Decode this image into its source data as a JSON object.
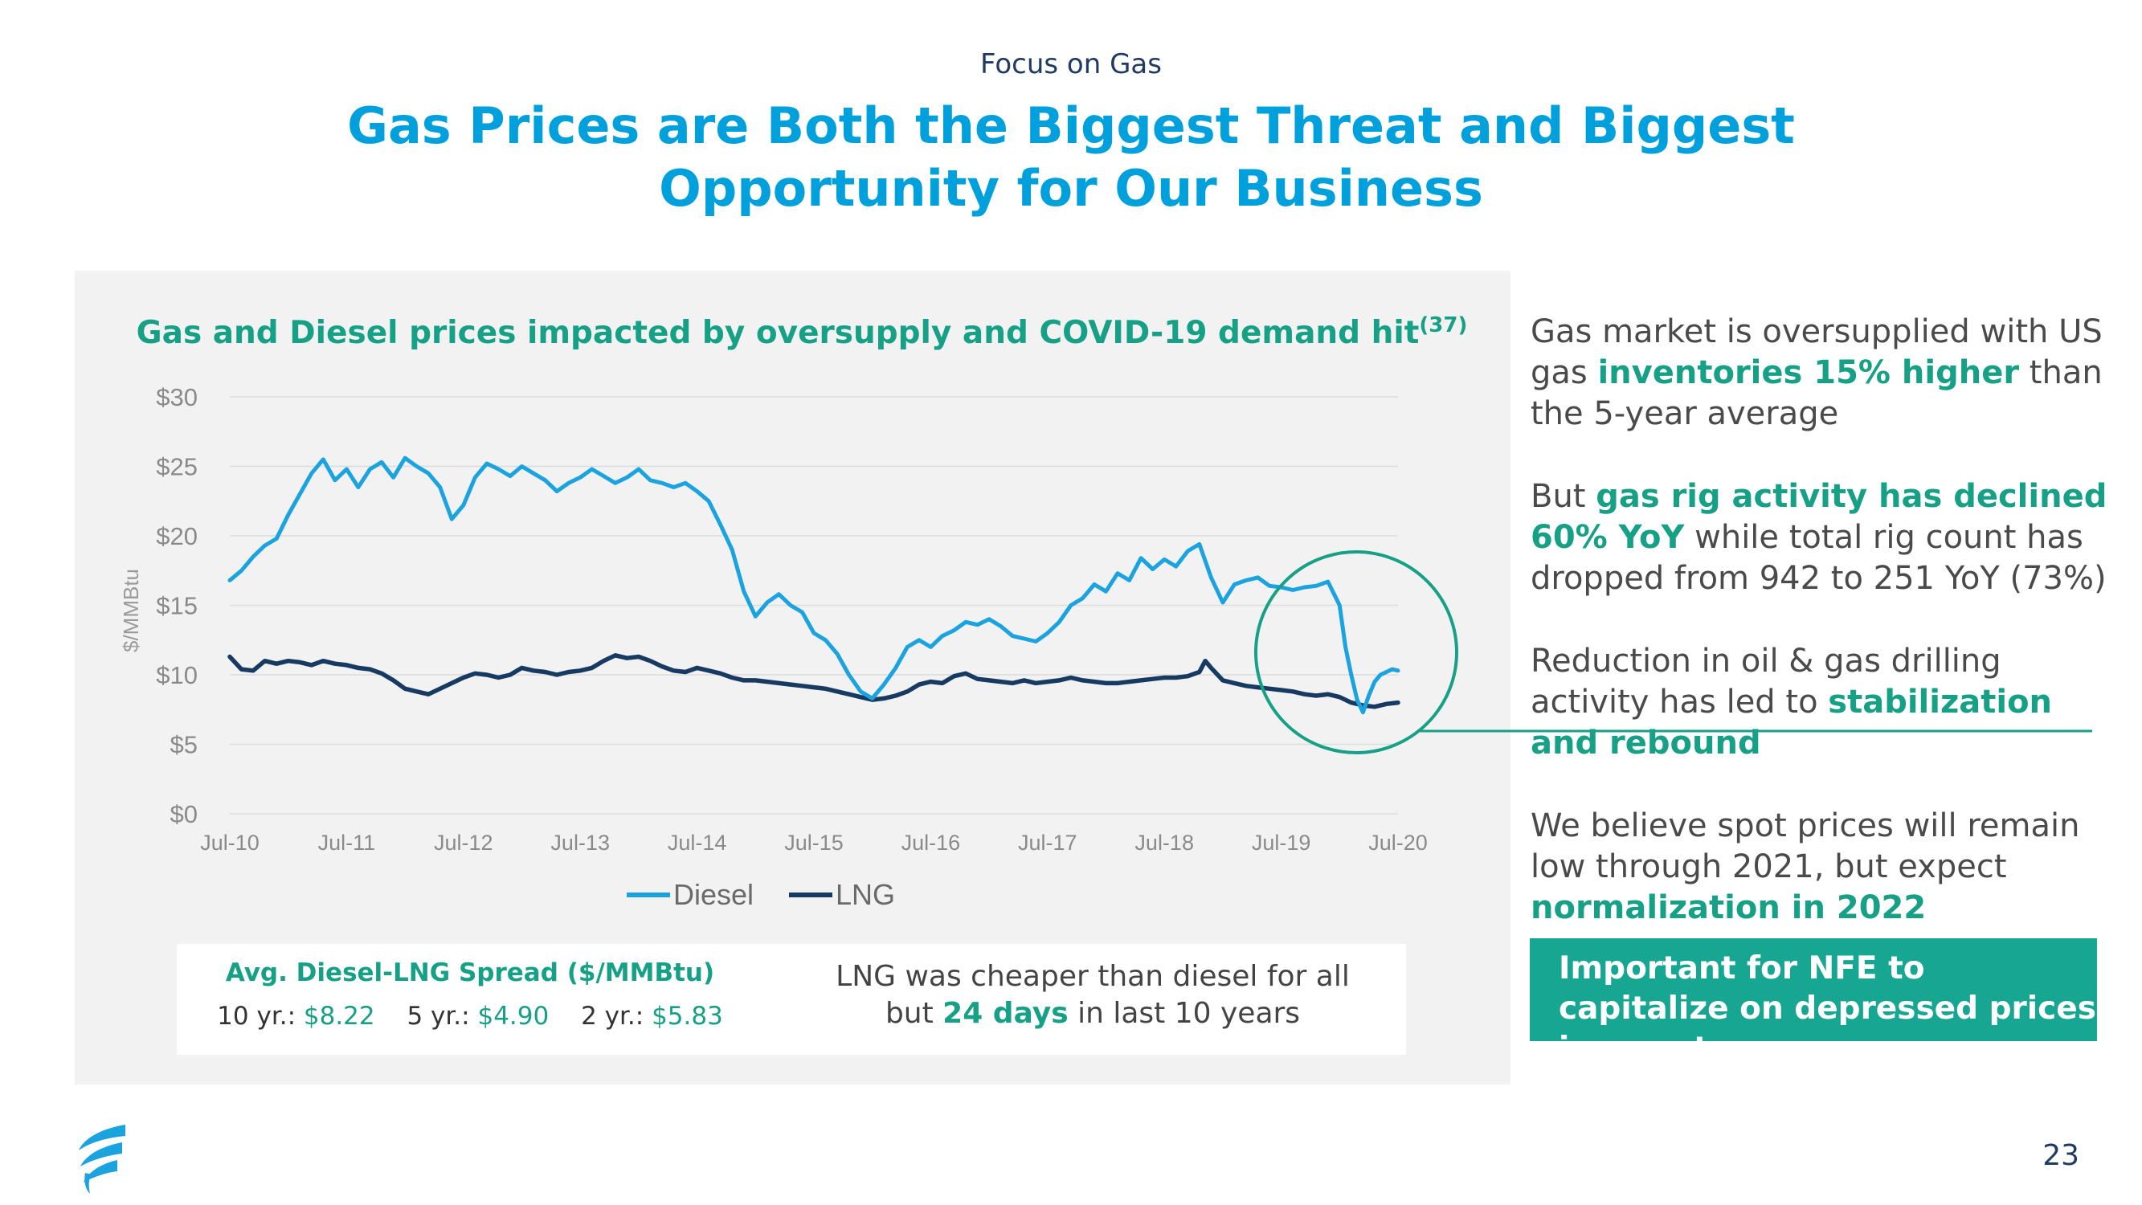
{
  "header": {
    "kicker": "Focus on Gas",
    "title": "Gas Prices are Both the Biggest Threat and Biggest Opportunity for Our Business"
  },
  "chart_data": {
    "type": "line",
    "title": "Gas and Diesel prices impacted by oversupply and COVID-19 demand hit",
    "title_superscript": "(37)",
    "ylabel": "$/MMBtu",
    "xlabel": "",
    "ylim": [
      0,
      30
    ],
    "yticks": [
      "$0",
      "$5",
      "$10",
      "$15",
      "$20",
      "$25",
      "$30"
    ],
    "xticks": [
      "Jul-10",
      "Jul-11",
      "Jul-12",
      "Jul-13",
      "Jul-14",
      "Jul-15",
      "Jul-16",
      "Jul-17",
      "Jul-18",
      "Jul-19",
      "Jul-20"
    ],
    "x_range": [
      2010.5,
      2020.5
    ],
    "grid": true,
    "legend": "bottom-center",
    "series": [
      {
        "name": "Diesel",
        "color": "#1aa3de",
        "points": [
          [
            2010.5,
            16.8
          ],
          [
            2010.6,
            17.5
          ],
          [
            2010.7,
            18.5
          ],
          [
            2010.8,
            19.3
          ],
          [
            2010.9,
            19.8
          ],
          [
            2011.0,
            21.5
          ],
          [
            2011.1,
            23.0
          ],
          [
            2011.2,
            24.5
          ],
          [
            2011.3,
            25.5
          ],
          [
            2011.4,
            24.0
          ],
          [
            2011.5,
            24.8
          ],
          [
            2011.6,
            23.5
          ],
          [
            2011.7,
            24.8
          ],
          [
            2011.8,
            25.3
          ],
          [
            2011.9,
            24.2
          ],
          [
            2012.0,
            25.6
          ],
          [
            2012.1,
            25.0
          ],
          [
            2012.2,
            24.5
          ],
          [
            2012.3,
            23.5
          ],
          [
            2012.4,
            21.2
          ],
          [
            2012.5,
            22.2
          ],
          [
            2012.6,
            24.2
          ],
          [
            2012.7,
            25.2
          ],
          [
            2012.8,
            24.8
          ],
          [
            2012.9,
            24.3
          ],
          [
            2013.0,
            25.0
          ],
          [
            2013.1,
            24.5
          ],
          [
            2013.2,
            24.0
          ],
          [
            2013.3,
            23.2
          ],
          [
            2013.4,
            23.8
          ],
          [
            2013.5,
            24.2
          ],
          [
            2013.6,
            24.8
          ],
          [
            2013.7,
            24.3
          ],
          [
            2013.8,
            23.8
          ],
          [
            2013.9,
            24.2
          ],
          [
            2014.0,
            24.8
          ],
          [
            2014.1,
            24.0
          ],
          [
            2014.2,
            23.8
          ],
          [
            2014.3,
            23.5
          ],
          [
            2014.4,
            23.8
          ],
          [
            2014.5,
            23.2
          ],
          [
            2014.6,
            22.5
          ],
          [
            2014.7,
            20.8
          ],
          [
            2014.8,
            19.0
          ],
          [
            2014.9,
            16.0
          ],
          [
            2015.0,
            14.2
          ],
          [
            2015.1,
            15.2
          ],
          [
            2015.2,
            15.8
          ],
          [
            2015.3,
            15.0
          ],
          [
            2015.4,
            14.5
          ],
          [
            2015.5,
            13.0
          ],
          [
            2015.6,
            12.5
          ],
          [
            2015.7,
            11.5
          ],
          [
            2015.8,
            10.0
          ],
          [
            2015.9,
            8.8
          ],
          [
            2016.0,
            8.3
          ],
          [
            2016.1,
            9.3
          ],
          [
            2016.2,
            10.5
          ],
          [
            2016.3,
            12.0
          ],
          [
            2016.4,
            12.5
          ],
          [
            2016.5,
            12.0
          ],
          [
            2016.6,
            12.8
          ],
          [
            2016.7,
            13.2
          ],
          [
            2016.8,
            13.8
          ],
          [
            2016.9,
            13.6
          ],
          [
            2017.0,
            14.0
          ],
          [
            2017.1,
            13.5
          ],
          [
            2017.2,
            12.8
          ],
          [
            2017.3,
            12.6
          ],
          [
            2017.4,
            12.4
          ],
          [
            2017.5,
            13.0
          ],
          [
            2017.6,
            13.8
          ],
          [
            2017.7,
            15.0
          ],
          [
            2017.8,
            15.5
          ],
          [
            2017.9,
            16.5
          ],
          [
            2018.0,
            16.0
          ],
          [
            2018.1,
            17.3
          ],
          [
            2018.2,
            16.8
          ],
          [
            2018.3,
            18.4
          ],
          [
            2018.4,
            17.6
          ],
          [
            2018.5,
            18.3
          ],
          [
            2018.6,
            17.8
          ],
          [
            2018.7,
            18.9
          ],
          [
            2018.8,
            19.4
          ],
          [
            2018.9,
            17.0
          ],
          [
            2019.0,
            15.2
          ],
          [
            2019.1,
            16.5
          ],
          [
            2019.2,
            16.8
          ],
          [
            2019.3,
            17.0
          ],
          [
            2019.4,
            16.4
          ],
          [
            2019.5,
            16.3
          ],
          [
            2019.6,
            16.1
          ],
          [
            2019.7,
            16.3
          ],
          [
            2019.8,
            16.4
          ],
          [
            2019.9,
            16.7
          ],
          [
            2020.0,
            15.0
          ],
          [
            2020.05,
            12.0
          ],
          [
            2020.1,
            10.0
          ],
          [
            2020.15,
            8.2
          ],
          [
            2020.2,
            7.3
          ],
          [
            2020.25,
            8.5
          ],
          [
            2020.3,
            9.5
          ],
          [
            2020.35,
            10.0
          ],
          [
            2020.4,
            10.2
          ],
          [
            2020.45,
            10.4
          ],
          [
            2020.5,
            10.3
          ]
        ]
      },
      {
        "name": "LNG",
        "color": "#173a63",
        "points": [
          [
            2010.5,
            11.3
          ],
          [
            2010.6,
            10.4
          ],
          [
            2010.7,
            10.3
          ],
          [
            2010.8,
            11.0
          ],
          [
            2010.9,
            10.8
          ],
          [
            2011.0,
            11.0
          ],
          [
            2011.1,
            10.9
          ],
          [
            2011.2,
            10.7
          ],
          [
            2011.3,
            11.0
          ],
          [
            2011.4,
            10.8
          ],
          [
            2011.5,
            10.7
          ],
          [
            2011.6,
            10.5
          ],
          [
            2011.7,
            10.4
          ],
          [
            2011.8,
            10.1
          ],
          [
            2011.9,
            9.6
          ],
          [
            2012.0,
            9.0
          ],
          [
            2012.1,
            8.8
          ],
          [
            2012.2,
            8.6
          ],
          [
            2012.3,
            9.0
          ],
          [
            2012.4,
            9.4
          ],
          [
            2012.5,
            9.8
          ],
          [
            2012.6,
            10.1
          ],
          [
            2012.7,
            10.0
          ],
          [
            2012.8,
            9.8
          ],
          [
            2012.9,
            10.0
          ],
          [
            2013.0,
            10.5
          ],
          [
            2013.1,
            10.3
          ],
          [
            2013.2,
            10.2
          ],
          [
            2013.3,
            10.0
          ],
          [
            2013.4,
            10.2
          ],
          [
            2013.5,
            10.3
          ],
          [
            2013.6,
            10.5
          ],
          [
            2013.7,
            11.0
          ],
          [
            2013.8,
            11.4
          ],
          [
            2013.9,
            11.2
          ],
          [
            2014.0,
            11.3
          ],
          [
            2014.1,
            11.0
          ],
          [
            2014.2,
            10.6
          ],
          [
            2014.3,
            10.3
          ],
          [
            2014.4,
            10.2
          ],
          [
            2014.5,
            10.5
          ],
          [
            2014.6,
            10.3
          ],
          [
            2014.7,
            10.1
          ],
          [
            2014.8,
            9.8
          ],
          [
            2014.9,
            9.6
          ],
          [
            2015.0,
            9.6
          ],
          [
            2015.1,
            9.5
          ],
          [
            2015.2,
            9.4
          ],
          [
            2015.3,
            9.3
          ],
          [
            2015.4,
            9.2
          ],
          [
            2015.5,
            9.1
          ],
          [
            2015.6,
            9.0
          ],
          [
            2015.7,
            8.8
          ],
          [
            2015.8,
            8.6
          ],
          [
            2015.9,
            8.4
          ],
          [
            2016.0,
            8.2
          ],
          [
            2016.1,
            8.3
          ],
          [
            2016.2,
            8.5
          ],
          [
            2016.3,
            8.8
          ],
          [
            2016.4,
            9.3
          ],
          [
            2016.5,
            9.5
          ],
          [
            2016.6,
            9.4
          ],
          [
            2016.7,
            9.9
          ],
          [
            2016.8,
            10.1
          ],
          [
            2016.9,
            9.7
          ],
          [
            2017.0,
            9.6
          ],
          [
            2017.1,
            9.5
          ],
          [
            2017.2,
            9.4
          ],
          [
            2017.3,
            9.6
          ],
          [
            2017.4,
            9.4
          ],
          [
            2017.5,
            9.5
          ],
          [
            2017.6,
            9.6
          ],
          [
            2017.7,
            9.8
          ],
          [
            2017.8,
            9.6
          ],
          [
            2017.9,
            9.5
          ],
          [
            2018.0,
            9.4
          ],
          [
            2018.1,
            9.4
          ],
          [
            2018.2,
            9.5
          ],
          [
            2018.3,
            9.6
          ],
          [
            2018.4,
            9.7
          ],
          [
            2018.5,
            9.8
          ],
          [
            2018.6,
            9.8
          ],
          [
            2018.7,
            9.9
          ],
          [
            2018.8,
            10.2
          ],
          [
            2018.85,
            11.0
          ],
          [
            2018.9,
            10.5
          ],
          [
            2019.0,
            9.6
          ],
          [
            2019.1,
            9.4
          ],
          [
            2019.2,
            9.2
          ],
          [
            2019.3,
            9.1
          ],
          [
            2019.4,
            9.0
          ],
          [
            2019.5,
            8.9
          ],
          [
            2019.6,
            8.8
          ],
          [
            2019.7,
            8.6
          ],
          [
            2019.8,
            8.5
          ],
          [
            2019.9,
            8.6
          ],
          [
            2020.0,
            8.4
          ],
          [
            2020.1,
            8.0
          ],
          [
            2020.2,
            7.8
          ],
          [
            2020.3,
            7.7
          ],
          [
            2020.4,
            7.9
          ],
          [
            2020.5,
            8.0
          ]
        ]
      }
    ],
    "highlight": {
      "shape": "circle",
      "color": "#16a085",
      "x_center": 2020.0,
      "y_center": 11.5,
      "note": "stabilization and rebound"
    }
  },
  "spread": {
    "title": "Avg. Diesel-LNG Spread ($/MMBtu)",
    "items": [
      {
        "label": "10 yr.: ",
        "value": "$8.22"
      },
      {
        "label": "5 yr.: ",
        "value": "$4.90"
      },
      {
        "label": "2 yr.: ",
        "value": "$5.83"
      }
    ]
  },
  "lng_note": {
    "line1": "LNG was cheaper than diesel for all",
    "pre": "but ",
    "em": "24 days",
    "post": " in last 10 years"
  },
  "bullets": [
    {
      "a": "Gas market is oversupplied with US gas ",
      "em": "inventories 15% higher",
      "b": " than the 5-year average"
    },
    {
      "a": "But ",
      "em": "gas rig activity has declined 60% YoY",
      "b": " while total rig count has dropped from 942 to 251 YoY (73%)"
    },
    {
      "a": "Reduction in oil & gas drilling activity has led to ",
      "em": "stabilization and rebound",
      "b": ""
    },
    {
      "a": "We believe spot prices will remain low through 2021, but expect ",
      "em": "normalization in 2022",
      "b": ""
    }
  ],
  "callout": "Important for NFE to capitalize on depressed prices in near term",
  "page_number": "23",
  "colors": {
    "accent_blue": "#00a0dc",
    "accent_green": "#16a085",
    "navy": "#173a63",
    "panel": "#f2f2f2"
  }
}
